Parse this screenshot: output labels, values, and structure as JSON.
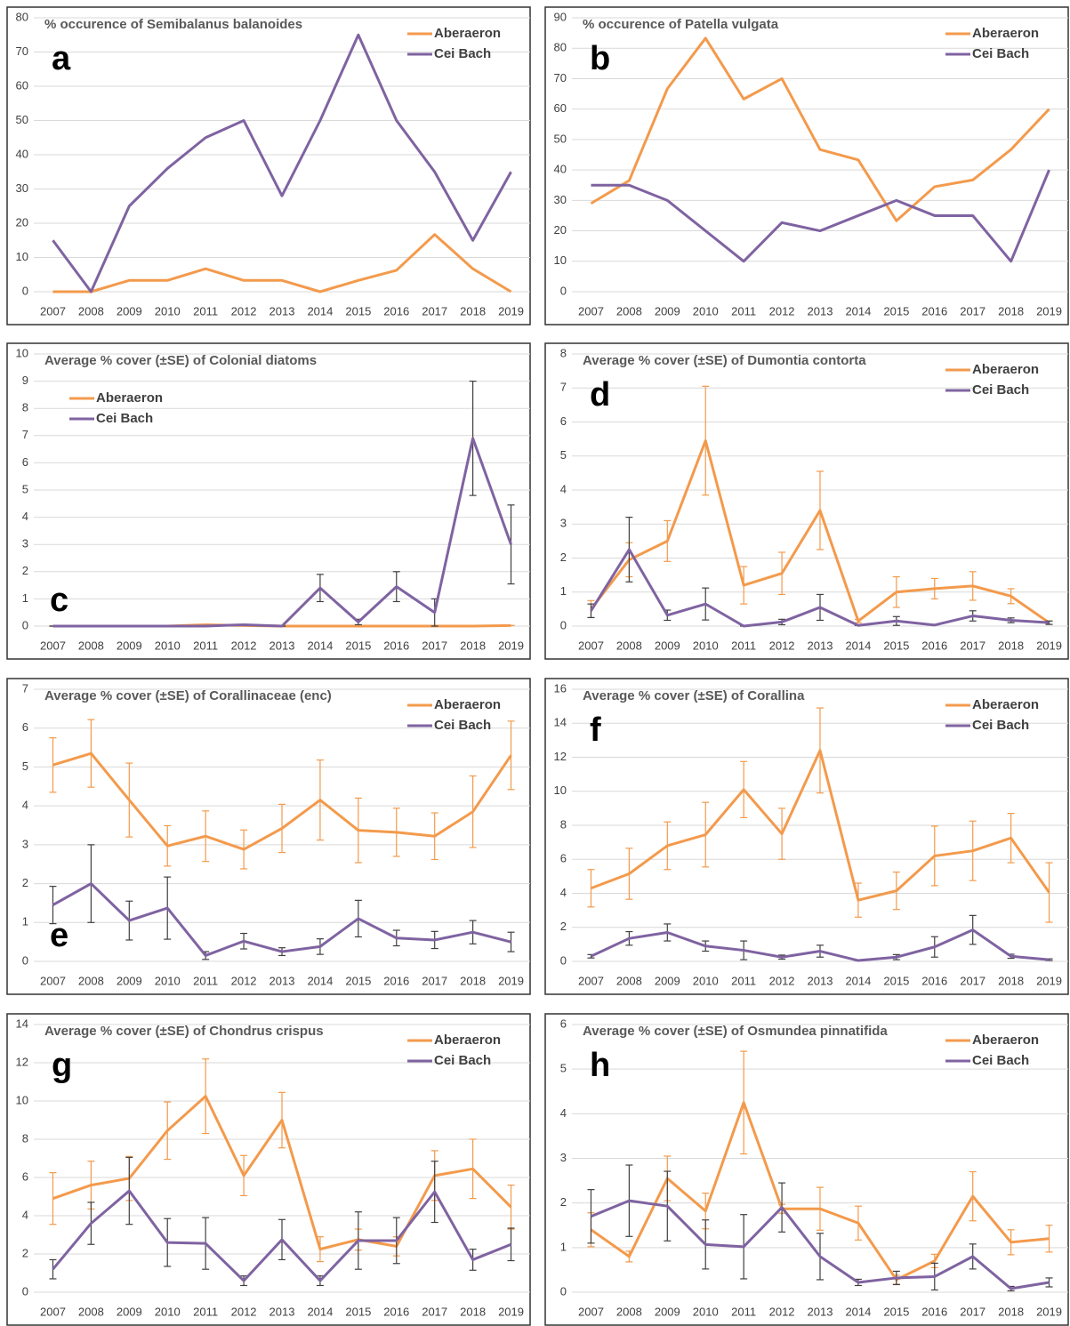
{
  "chart_data": [
    {
      "type": "line",
      "title": "% occurence of Semibalanus balanoides",
      "panel_label": "a",
      "panel_label_position": "upper left",
      "legend": "upper right",
      "grid": true,
      "categories": [
        "2007",
        "2008",
        "2009",
        "2010",
        "2011",
        "2012",
        "2013",
        "2014",
        "2015",
        "2016",
        "2017",
        "2018",
        "2019"
      ],
      "ylim": [
        0,
        80
      ],
      "yticks": [
        0,
        10,
        20,
        30,
        40,
        50,
        60,
        70,
        80
      ],
      "series": [
        {
          "name": "Aberaeron",
          "color": "#f39a4c",
          "values": [
            0,
            0,
            3.3,
            3.3,
            6.7,
            3.3,
            3.3,
            0,
            3.3,
            6.25,
            16.7,
            6.7,
            0
          ]
        },
        {
          "name": "Cei Bach",
          "color": "#7f63a1",
          "values": [
            15,
            0,
            25,
            36,
            45,
            50,
            28,
            50,
            75,
            50,
            35,
            15,
            35
          ]
        }
      ]
    },
    {
      "type": "line",
      "title": "% occurence of Patella vulgata",
      "panel_label": "b",
      "panel_label_position": "upper left",
      "legend": "upper right",
      "grid": true,
      "categories": [
        "2007",
        "2008",
        "2009",
        "2010",
        "2011",
        "2012",
        "2013",
        "2014",
        "2015",
        "2016",
        "2017",
        "2018",
        "2019"
      ],
      "ylim": [
        0,
        90
      ],
      "yticks": [
        0,
        10,
        20,
        30,
        40,
        50,
        60,
        70,
        80,
        90
      ],
      "series": [
        {
          "name": "Aberaeron",
          "color": "#f39a4c",
          "values": [
            29,
            36.5,
            66.7,
            83.3,
            63.3,
            70,
            46.7,
            43.3,
            23.3,
            34.5,
            36.7,
            46.7,
            60
          ]
        },
        {
          "name": "Cei Bach",
          "color": "#7f63a1",
          "values": [
            35,
            35,
            30,
            20,
            10,
            22.7,
            20,
            25,
            30,
            25,
            25,
            10,
            40
          ]
        }
      ]
    },
    {
      "type": "line",
      "title": "Average % cover (±SE) of Colonial diatoms",
      "panel_label": "c",
      "panel_label_position": "lower left",
      "legend": "upper left",
      "grid": true,
      "categories": [
        "2007",
        "2008",
        "2009",
        "2010",
        "2011",
        "2012",
        "2013",
        "2014",
        "2015",
        "2016",
        "2017",
        "2018",
        "2019"
      ],
      "ylim": [
        0,
        10
      ],
      "yticks": [
        0,
        1,
        2,
        3,
        4,
        5,
        6,
        7,
        8,
        9,
        10
      ],
      "series": [
        {
          "name": "Aberaeron",
          "color": "#f39a4c",
          "error_color": "#f39a4c",
          "values": [
            0,
            0,
            0,
            0,
            0.05,
            0.02,
            0,
            0,
            0,
            0,
            0,
            0,
            0.02
          ],
          "errors": [
            0,
            0,
            0,
            0,
            0,
            0,
            0,
            0,
            0,
            0,
            0,
            0,
            0
          ]
        },
        {
          "name": "Cei Bach",
          "color": "#7f63a1",
          "error_color": "#404040",
          "values": [
            0,
            0,
            0,
            0,
            0,
            0.05,
            0,
            1.4,
            0.15,
            1.45,
            0.5,
            6.9,
            3.0
          ],
          "errors": [
            0,
            0,
            0,
            0,
            0,
            0,
            0,
            0.5,
            0.1,
            0.55,
            0.5,
            2.1,
            1.45
          ]
        }
      ]
    },
    {
      "type": "line",
      "title": "Average % cover (±SE) of Dumontia contorta",
      "panel_label": "d",
      "panel_label_position": "upper left",
      "legend": "upper right",
      "grid": true,
      "categories": [
        "2007",
        "2008",
        "2009",
        "2010",
        "2011",
        "2012",
        "2013",
        "2014",
        "2015",
        "2016",
        "2017",
        "2018",
        "2019"
      ],
      "ylim": [
        0,
        8
      ],
      "yticks": [
        0,
        1,
        2,
        3,
        4,
        5,
        6,
        7,
        8
      ],
      "series": [
        {
          "name": "Aberaeron",
          "color": "#f39a4c",
          "error_color": "#f39a4c",
          "values": [
            0.5,
            1.95,
            2.5,
            5.45,
            1.2,
            1.55,
            3.4,
            0.15,
            1.0,
            1.1,
            1.18,
            0.88,
            0.1
          ],
          "errors": [
            0.25,
            0.5,
            0.6,
            1.6,
            0.55,
            0.62,
            1.15,
            0.05,
            0.45,
            0.3,
            0.42,
            0.22,
            0.05
          ]
        },
        {
          "name": "Cei Bach",
          "color": "#7f63a1",
          "error_color": "#404040",
          "values": [
            0.45,
            2.25,
            0.32,
            0.65,
            0,
            0.12,
            0.55,
            0.02,
            0.15,
            0.03,
            0.3,
            0.17,
            0.1
          ],
          "errors": [
            0.2,
            0.95,
            0.15,
            0.47,
            0,
            0.08,
            0.38,
            0,
            0.13,
            0,
            0.15,
            0.07,
            0.05
          ]
        }
      ]
    },
    {
      "type": "line",
      "title": "Average % cover (±SE) of Corallinaceae (enc)",
      "panel_label": "e",
      "panel_label_position": "lower left",
      "legend": "upper right",
      "grid": true,
      "categories": [
        "2007",
        "2008",
        "2009",
        "2010",
        "2011",
        "2012",
        "2013",
        "2014",
        "2015",
        "2016",
        "2017",
        "2018",
        "2019"
      ],
      "ylim": [
        0,
        7
      ],
      "yticks": [
        0,
        1,
        2,
        3,
        4,
        5,
        6,
        7
      ],
      "series": [
        {
          "name": "Aberaeron",
          "color": "#f39a4c",
          "error_color": "#f39a4c",
          "values": [
            5.05,
            5.35,
            4.15,
            2.97,
            3.22,
            2.88,
            3.42,
            4.15,
            3.37,
            3.32,
            3.22,
            3.85,
            5.3
          ],
          "errors": [
            0.7,
            0.87,
            0.95,
            0.52,
            0.65,
            0.5,
            0.62,
            1.03,
            0.83,
            0.62,
            0.6,
            0.92,
            0.88
          ]
        },
        {
          "name": "Cei Bach",
          "color": "#7f63a1",
          "error_color": "#404040",
          "values": [
            1.45,
            2.0,
            1.05,
            1.37,
            0.15,
            0.52,
            0.25,
            0.38,
            1.1,
            0.6,
            0.55,
            0.75,
            0.5
          ],
          "errors": [
            0.48,
            1.0,
            0.5,
            0.8,
            0.1,
            0.2,
            0.1,
            0.2,
            0.47,
            0.2,
            0.22,
            0.3,
            0.25
          ]
        }
      ]
    },
    {
      "type": "line",
      "title": "Average % cover (±SE) of Corallina",
      "panel_label": "f",
      "panel_label_position": "upper left",
      "legend": "upper right",
      "grid": true,
      "categories": [
        "2007",
        "2008",
        "2009",
        "2010",
        "2011",
        "2012",
        "2013",
        "2014",
        "2015",
        "2016",
        "2017",
        "2018",
        "2019"
      ],
      "ylim": [
        0,
        16
      ],
      "yticks": [
        0,
        2,
        4,
        6,
        8,
        10,
        12,
        14,
        16
      ],
      "series": [
        {
          "name": "Aberaeron",
          "color": "#f39a4c",
          "error_color": "#f39a4c",
          "values": [
            4.3,
            5.15,
            6.8,
            7.45,
            10.1,
            7.5,
            12.4,
            3.6,
            4.15,
            6.2,
            6.5,
            7.25,
            4.05
          ],
          "errors": [
            1.1,
            1.5,
            1.4,
            1.9,
            1.65,
            1.5,
            2.5,
            1.0,
            1.1,
            1.75,
            1.75,
            1.45,
            1.75
          ]
        },
        {
          "name": "Cei Bach",
          "color": "#7f63a1",
          "error_color": "#404040",
          "values": [
            0.3,
            1.35,
            1.7,
            0.9,
            0.65,
            0.25,
            0.6,
            0.05,
            0.25,
            0.85,
            1.85,
            0.3,
            0.1
          ],
          "errors": [
            0.1,
            0.4,
            0.5,
            0.3,
            0.55,
            0.12,
            0.35,
            0,
            0.15,
            0.6,
            0.85,
            0.12,
            0.05
          ]
        }
      ]
    },
    {
      "type": "line",
      "title": "Average % cover (±SE) of Chondrus crispus",
      "panel_label": "g",
      "panel_label_position": "upper left",
      "legend": "upper right",
      "grid": true,
      "categories": [
        "2007",
        "2008",
        "2009",
        "2010",
        "2011",
        "2012",
        "2013",
        "2014",
        "2015",
        "2016",
        "2017",
        "2018",
        "2019"
      ],
      "ylim": [
        0,
        14
      ],
      "yticks": [
        0,
        2,
        4,
        6,
        8,
        10,
        12,
        14
      ],
      "series": [
        {
          "name": "Aberaeron",
          "color": "#f39a4c",
          "error_color": "#f39a4c",
          "values": [
            4.9,
            5.6,
            5.95,
            8.45,
            10.25,
            6.1,
            9.0,
            2.25,
            2.75,
            2.4,
            6.1,
            6.45,
            4.45
          ],
          "errors": [
            1.35,
            1.25,
            1.15,
            1.5,
            1.95,
            1.05,
            1.45,
            0.65,
            0.55,
            0.5,
            1.3,
            1.55,
            1.15
          ]
        },
        {
          "name": "Cei Bach",
          "color": "#7f63a1",
          "error_color": "#404040",
          "values": [
            1.2,
            3.6,
            5.3,
            2.6,
            2.55,
            0.6,
            2.75,
            0.6,
            2.7,
            2.7,
            5.25,
            1.7,
            2.5
          ],
          "errors": [
            0.5,
            1.1,
            1.75,
            1.25,
            1.35,
            0.25,
            1.05,
            0.25,
            1.5,
            1.2,
            1.6,
            0.55,
            0.85
          ]
        }
      ]
    },
    {
      "type": "line",
      "title": "Average % cover (±SE) of Osmundea pinnatifida",
      "panel_label": "h",
      "panel_label_position": "upper left",
      "legend": "upper right",
      "grid": true,
      "categories": [
        "2007",
        "2008",
        "2009",
        "2010",
        "2011",
        "2012",
        "2013",
        "2014",
        "2015",
        "2016",
        "2017",
        "2018",
        "2019"
      ],
      "ylim": [
        0,
        6
      ],
      "yticks": [
        0,
        1,
        2,
        3,
        4,
        5,
        6
      ],
      "series": [
        {
          "name": "Aberaeron",
          "color": "#f39a4c",
          "error_color": "#f39a4c",
          "values": [
            1.4,
            0.8,
            2.55,
            1.82,
            4.25,
            1.87,
            1.87,
            1.55,
            0.28,
            0.7,
            2.15,
            1.12,
            1.2
          ],
          "errors": [
            0.38,
            0.12,
            0.5,
            0.4,
            1.15,
            0.1,
            0.48,
            0.38,
            0.1,
            0.15,
            0.55,
            0.28,
            0.3
          ]
        },
        {
          "name": "Cei Bach",
          "color": "#7f63a1",
          "error_color": "#404040",
          "values": [
            1.7,
            2.05,
            1.93,
            1.07,
            1.02,
            1.9,
            0.8,
            0.22,
            0.32,
            0.35,
            0.8,
            0.08,
            0.22
          ],
          "errors": [
            0.6,
            0.8,
            0.78,
            0.55,
            0.72,
            0.55,
            0.52,
            0.07,
            0.15,
            0.3,
            0.28,
            0.05,
            0.1
          ]
        }
      ]
    }
  ]
}
